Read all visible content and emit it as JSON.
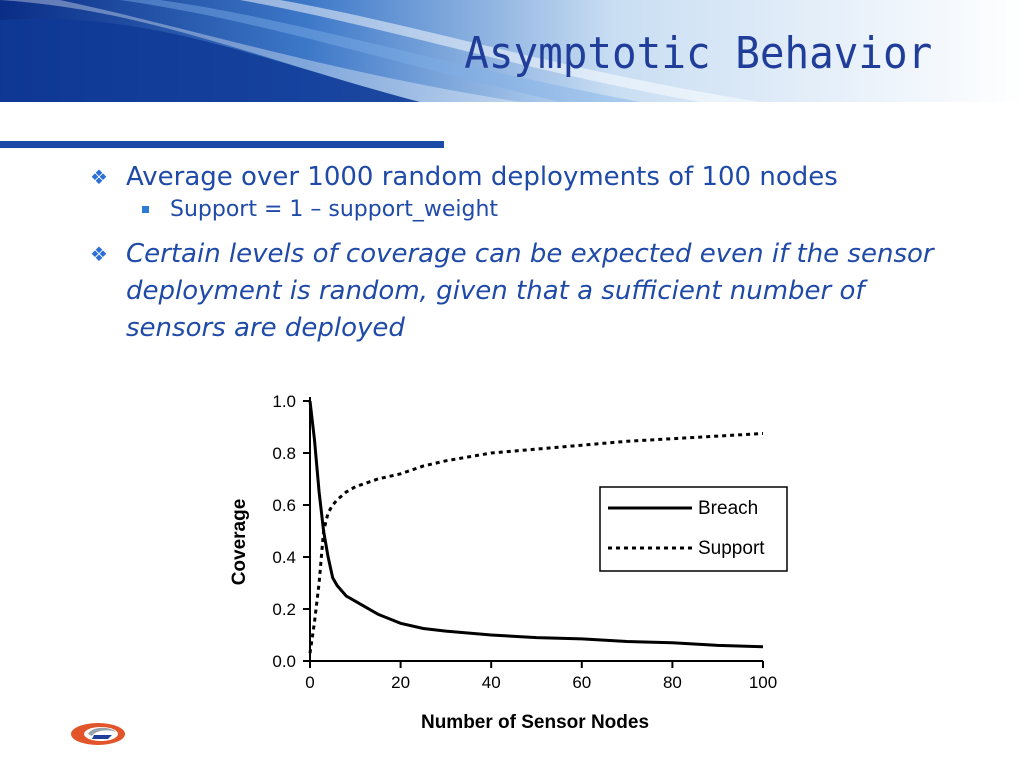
{
  "slide": {
    "title": "Asymptotic Behavior",
    "bullets": [
      {
        "text": "Average over 1000 random deployments of 100 nodes",
        "level": 1,
        "italic": false
      },
      {
        "text": "Support = 1 – support_weight",
        "level": 2,
        "italic": false
      },
      {
        "text": "Certain levels of coverage can be expected even if the sensor deployment is random, given that a sufficient number of sensors are deployed",
        "level": 1,
        "italic": true
      }
    ],
    "bullet_icon": "diamond-cluster-icon",
    "logo_icon": "company-logo-icon"
  },
  "colors": {
    "title": "#1f3d99",
    "text": "#1f4aa8",
    "accent": "#1d4aa6"
  },
  "chart_data": {
    "type": "line",
    "xlabel": "Number of Sensor Nodes",
    "ylabel": "Coverage",
    "xlim": [
      0,
      100
    ],
    "ylim": [
      0,
      1.0
    ],
    "xticks": [
      "0",
      "20",
      "40",
      "60",
      "80",
      "100"
    ],
    "yticks": [
      "0.0",
      "0.2",
      "0.4",
      "0.6",
      "0.8",
      "1.0"
    ],
    "legend_position": "right-middle",
    "grid": false,
    "series": [
      {
        "name": "Breach",
        "style": "solid",
        "x": [
          0,
          1,
          2,
          3,
          4,
          5,
          6,
          8,
          10,
          15,
          20,
          25,
          30,
          40,
          50,
          60,
          70,
          80,
          90,
          100
        ],
        "y": [
          1.0,
          0.85,
          0.65,
          0.5,
          0.4,
          0.32,
          0.29,
          0.25,
          0.23,
          0.18,
          0.145,
          0.125,
          0.115,
          0.1,
          0.09,
          0.085,
          0.075,
          0.07,
          0.06,
          0.055
        ]
      },
      {
        "name": "Support",
        "style": "dotted",
        "x": [
          0,
          1,
          2,
          3,
          4,
          5,
          6,
          8,
          10,
          15,
          20,
          25,
          30,
          40,
          50,
          60,
          70,
          80,
          90,
          100
        ],
        "y": [
          0.03,
          0.15,
          0.3,
          0.5,
          0.57,
          0.6,
          0.62,
          0.65,
          0.67,
          0.7,
          0.72,
          0.75,
          0.77,
          0.8,
          0.815,
          0.83,
          0.845,
          0.855,
          0.865,
          0.875
        ]
      }
    ]
  }
}
